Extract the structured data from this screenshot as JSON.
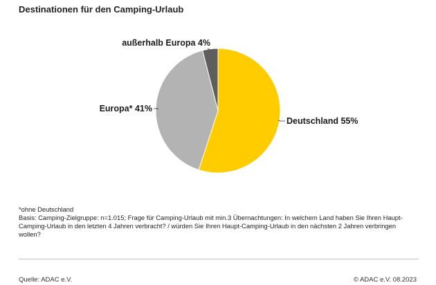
{
  "title": "Destinationen für den Camping-Urlaub",
  "chart_data": {
    "type": "pie",
    "slices": [
      {
        "label": "Deutschland 55%",
        "category": "Deutschland",
        "value": 55,
        "color": "#FFCC00"
      },
      {
        "label": "Europa* 41%",
        "category": "Europa*",
        "value": 41,
        "color": "#B3B3B3"
      },
      {
        "label": "außerhalb Europa 4%",
        "category": "außerhalb Europa",
        "value": 4,
        "color": "#5E5E5E"
      }
    ],
    "legend": "none"
  },
  "notes": {
    "footnote": "*ohne Deutschland",
    "basis": "Basis: Camping-Zielgruppe: n=1.015; Frage für Camping-Urlaub mit min.3 Übernachtungen: In welchem Land haben Sie Ihren Haupt-Camping-Urlaub in den letzten 4 Jahren verbracht? / würden Sie Ihren Haupt-Camping-Urlaub in den nächsten 2 Jahren  verbringen wollen?"
  },
  "footer": {
    "source": "Quelle: ADAC e.V.",
    "copyright": "© ADAC e.V. 08.2023"
  }
}
